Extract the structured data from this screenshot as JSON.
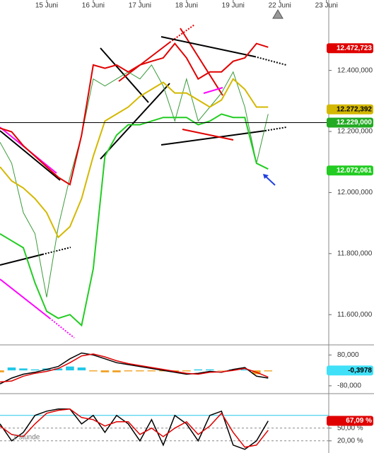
{
  "chart_data": [
    {
      "type": "line",
      "xlim": [
        0,
        7.05
      ],
      "xticks": [
        {
          "value": 1,
          "label": "15 Juni"
        },
        {
          "value": 2,
          "label": "16 Juni"
        },
        {
          "value": 3,
          "label": "17 Juni"
        },
        {
          "value": 4,
          "label": "18 Juni"
        },
        {
          "value": 5,
          "label": "19 Juni"
        },
        {
          "value": 6,
          "label": "22 Juni"
        },
        {
          "value": 7,
          "label": "23 Juni"
        }
      ],
      "ylim": [
        11501,
        12626
      ],
      "yticks": [
        {
          "value": 12400,
          "label": "12.400,000"
        },
        {
          "value": 12200,
          "label": "12.200,000"
        },
        {
          "value": 12000,
          "label": "12.000,000"
        },
        {
          "value": 11800,
          "label": "11.800,000"
        },
        {
          "value": 11600,
          "label": "11.600,000"
        }
      ],
      "x": [
        0,
        0.25,
        0.5,
        0.75,
        1,
        1.25,
        1.5,
        1.75,
        2,
        2.25,
        2.5,
        2.75,
        3,
        3.25,
        3.5,
        3.75,
        4,
        4.25,
        4.5,
        4.75,
        5,
        5.25,
        5.5,
        5.75
      ],
      "series": [
        {
          "color": "#3a9a3a",
          "width": 1,
          "values": [
            12165,
            12096,
            11934,
            11865,
            11657,
            11888,
            12050,
            12188,
            12372,
            12349,
            12372,
            12395,
            12372,
            12418,
            12349,
            12234,
            12372,
            12234,
            12280,
            12326,
            12395,
            12280,
            12096,
            12257
          ]
        },
        {
          "color": "#e00000",
          "width": 2,
          "values": [
            12211,
            12199,
            12153,
            12119,
            12084,
            12050,
            12026,
            12188,
            12418,
            12407,
            12418,
            12395,
            12418,
            12430,
            12441,
            12488,
            12441,
            12372,
            12395,
            12395,
            12430,
            12441,
            12488,
            12476
          ]
        },
        {
          "color": "#d4b800",
          "width": 2,
          "values": [
            12084,
            12038,
            12015,
            11980,
            11934,
            11853,
            11888,
            11980,
            12119,
            12234,
            12257,
            12280,
            12315,
            12338,
            12361,
            12326,
            12326,
            12303,
            12280,
            12303,
            12372,
            12338,
            12280,
            12280
          ]
        },
        {
          "color": "#22cc22",
          "width": 2,
          "values": [
            11865,
            11842,
            11819,
            11704,
            11611,
            11588,
            11600,
            11565,
            11750,
            12119,
            12188,
            12222,
            12222,
            12234,
            12246,
            12246,
            12246,
            12222,
            12234,
            12257,
            12246,
            12246,
            12096,
            12077
          ]
        }
      ],
      "markers": [
        {
          "value": 12472.723,
          "label": "12.472,723",
          "color": "#e00000",
          "text_color": "#ffffff"
        },
        {
          "value": 12272.392,
          "label": "12.272,392",
          "color": "#d4b800",
          "text_color": "#000000"
        },
        {
          "value": 12229,
          "label": "12.229,000",
          "color": "#22aa22",
          "text_color": "#ffffff",
          "line": true
        },
        {
          "value": 12072.061,
          "label": "12.072,061",
          "color": "#22cc22",
          "text_color": "#ffffff"
        }
      ]
    },
    {
      "type": "macd",
      "xlim": [
        0,
        7.05
      ],
      "ylim": [
        -117,
        125
      ],
      "yticks": [
        {
          "value": 80,
          "label": "80,000"
        },
        {
          "value": -80,
          "label": "-80,000"
        }
      ],
      "x": [
        0,
        0.25,
        0.5,
        0.75,
        1,
        1.25,
        1.5,
        1.75,
        2,
        2.25,
        2.5,
        2.75,
        3,
        3.25,
        3.5,
        3.75,
        4,
        4.25,
        4.5,
        4.75,
        5,
        5.25,
        5.5,
        5.75
      ],
      "histogram": [
        -10,
        15,
        10,
        5,
        10,
        10,
        20,
        15,
        -5,
        -10,
        -10,
        -5,
        -5,
        -5,
        -5,
        -5,
        -5,
        5,
        5,
        -2,
        5,
        5,
        -20,
        -5
      ],
      "hist_colors": [
        "#22c8e8",
        "#f0a020"
      ],
      "series": [
        {
          "color": "#000000",
          "width": 1.5,
          "values": [
            -70,
            -40,
            -20,
            -10,
            5,
            20,
            60,
            90,
            80,
            60,
            40,
            30,
            20,
            10,
            0,
            -10,
            -20,
            -15,
            -5,
            -10,
            5,
            15,
            -30,
            -40
          ]
        },
        {
          "color": "#e00000",
          "width": 1.5,
          "values": [
            -60,
            -55,
            -30,
            -15,
            -5,
            10,
            40,
            75,
            85,
            70,
            50,
            35,
            25,
            15,
            5,
            -5,
            -15,
            -20,
            -10,
            -8,
            0,
            10,
            -10,
            -35
          ]
        }
      ],
      "markers": [
        {
          "value": -0.3978,
          "label": "-0,3978",
          "color": "#40e0f8",
          "text_color": "#000000"
        }
      ]
    },
    {
      "type": "stochastic",
      "xlim": [
        0,
        7.05
      ],
      "ylim": [
        -7,
        113
      ],
      "label": "1 stunde",
      "yticks": [
        {
          "value": 50,
          "label": "50,00 %"
        },
        {
          "value": 20,
          "label": "20,00 %"
        }
      ],
      "hline": 80,
      "x": [
        0,
        0.25,
        0.5,
        0.75,
        1,
        1.25,
        1.5,
        1.75,
        2,
        2.25,
        2.5,
        2.75,
        3,
        3.25,
        3.5,
        3.75,
        4,
        4.25,
        4.5,
        4.75,
        5,
        5.25,
        5.5,
        5.75
      ],
      "series": [
        {
          "color": "#000000",
          "width": 1.5,
          "values": [
            60,
            20,
            40,
            80,
            90,
            95,
            95,
            60,
            80,
            40,
            80,
            60,
            20,
            70,
            10,
            80,
            60,
            20,
            80,
            90,
            10,
            0,
            20,
            67
          ]
        },
        {
          "color": "#e00000",
          "width": 1.5,
          "values": [
            55,
            35,
            30,
            60,
            85,
            92,
            95,
            75,
            70,
            55,
            65,
            65,
            35,
            50,
            30,
            50,
            65,
            35,
            55,
            85,
            40,
            5,
            10,
            45
          ]
        }
      ],
      "markers": [
        {
          "value": 67.09,
          "label": "67,09 %",
          "color": "#e00000",
          "text_color": "#ffffff"
        }
      ]
    }
  ]
}
